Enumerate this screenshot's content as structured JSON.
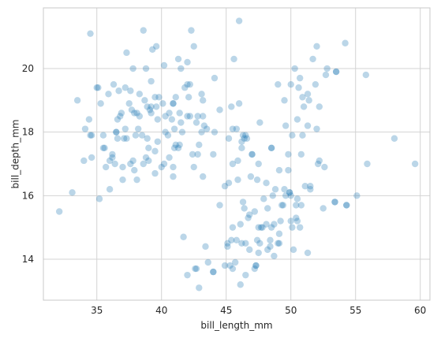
{
  "chart_data": {
    "type": "scatter",
    "title": "",
    "xlabel": "bill_length_mm",
    "ylabel": "bill_depth_mm",
    "xlim": [
      30.87,
      60.75
    ],
    "ylim": [
      12.71,
      21.91
    ],
    "xticks": [
      35,
      40,
      45,
      50,
      55,
      60
    ],
    "yticks": [
      14,
      16,
      18,
      20
    ],
    "grid": true,
    "marker_color": "#1f77b4",
    "marker_alpha": 0.3,
    "series": [
      {
        "points": [
          [
            34.5,
            21.1
          ],
          [
            35,
            19.4
          ],
          [
            35.3,
            18.9
          ],
          [
            35.5,
            17.5
          ],
          [
            35.9,
            19.2
          ],
          [
            36,
            17.1
          ],
          [
            36.2,
            17.2
          ],
          [
            36.3,
            19.5
          ],
          [
            36.5,
            18.0
          ],
          [
            36.6,
            18.4
          ],
          [
            36.7,
            19.3
          ],
          [
            36.9,
            18.6
          ],
          [
            37.0,
            16.9
          ],
          [
            37.2,
            18.1
          ],
          [
            37.3,
            17.8
          ],
          [
            37.5,
            18.9
          ],
          [
            37.6,
            19.3
          ],
          [
            37.7,
            18.7
          ],
          [
            37.8,
            17.1
          ],
          [
            37.9,
            18.6
          ],
          [
            38.1,
            18.6
          ],
          [
            38.2,
            18.1
          ],
          [
            38.3,
            19.2
          ],
          [
            38.5,
            17.9
          ],
          [
            38.6,
            21.2
          ],
          [
            38.7,
            19.0
          ],
          [
            38.8,
            17.2
          ],
          [
            39.0,
            17.5
          ],
          [
            39.1,
            18.7
          ],
          [
            39.2,
            19.6
          ],
          [
            39.3,
            20.6
          ],
          [
            39.5,
            17.4
          ],
          [
            39.6,
            18.8
          ],
          [
            39.7,
            18.4
          ],
          [
            39.8,
            19.1
          ],
          [
            40.1,
            18.9
          ],
          [
            40.2,
            17.0
          ],
          [
            40.3,
            18.0
          ],
          [
            40.5,
            17.9
          ],
          [
            40.6,
            18.6
          ],
          [
            40.8,
            18.4
          ],
          [
            40.9,
            16.6
          ],
          [
            41.1,
            17.6
          ],
          [
            41.3,
            20.3
          ],
          [
            41.4,
            18.6
          ],
          [
            41.5,
            18.3
          ],
          [
            41.6,
            18.0
          ],
          [
            41.8,
            19.4
          ],
          [
            42.0,
            20.2
          ],
          [
            42.1,
            19.1
          ],
          [
            42.2,
            18.5
          ],
          [
            42.3,
            21.2
          ],
          [
            42.5,
            20.7
          ],
          [
            42.7,
            18.3
          ],
          [
            42.8,
            18.5
          ],
          [
            42.9,
            17.6
          ],
          [
            43.1,
            19.2
          ],
          [
            43.2,
            18.5
          ],
          [
            44.1,
            19.7
          ],
          [
            45.2,
            16.4
          ],
          [
            45.5,
            13.7
          ],
          [
            45.8,
            14.6
          ],
          [
            46.1,
            13.2
          ],
          [
            46.2,
            14.5
          ],
          [
            46.5,
            13.5
          ],
          [
            46.8,
            15.4
          ],
          [
            47.0,
            17.3
          ],
          [
            47.2,
            13.7
          ],
          [
            47.4,
            14.6
          ],
          [
            47.6,
            14.5
          ],
          [
            47.8,
            15.0
          ],
          [
            48.1,
            15.1
          ],
          [
            48.4,
            14.4
          ],
          [
            48.7,
            14.1
          ],
          [
            49.0,
            14.5
          ],
          [
            49.1,
            14.8
          ],
          [
            49.5,
            16.2
          ],
          [
            49.8,
            16.8
          ],
          [
            50.0,
            15.2
          ],
          [
            50.2,
            14.3
          ],
          [
            50.5,
            15.9
          ],
          [
            50.7,
            15.0
          ],
          [
            51.1,
            16.3
          ],
          [
            51.5,
            16.3
          ],
          [
            52.2,
            17.1
          ],
          [
            53.4,
            15.8
          ],
          [
            54.3,
            15.7
          ],
          [
            55.1,
            16.0
          ],
          [
            55.9,
            17.0
          ],
          [
            59.6,
            17.0
          ],
          [
            32.1,
            15.5
          ],
          [
            33.1,
            16.1
          ],
          [
            33.5,
            19.0
          ],
          [
            34.0,
            17.1
          ],
          [
            34.1,
            18.1
          ],
          [
            34.4,
            18.4
          ],
          [
            34.6,
            17.2
          ],
          [
            35.1,
            19.4
          ],
          [
            35.2,
            15.9
          ],
          [
            35.7,
            16.9
          ],
          [
            36.0,
            16.2
          ],
          [
            36.4,
            17.0
          ],
          [
            36.8,
            18.5
          ],
          [
            37.0,
            16.5
          ],
          [
            37.3,
            20.5
          ],
          [
            37.6,
            17.0
          ],
          [
            37.9,
            16.8
          ],
          [
            38.1,
            16.5
          ],
          [
            38.6,
            17.0
          ],
          [
            38.9,
            17.8
          ],
          [
            39.2,
            18.8
          ],
          [
            39.7,
            17.7
          ],
          [
            40.0,
            16.9
          ],
          [
            40.6,
            17.2
          ],
          [
            40.9,
            16.9
          ],
          [
            41.0,
            17.5
          ],
          [
            41.4,
            17.6
          ],
          [
            42.0,
            18.5
          ],
          [
            42.4,
            17.3
          ],
          [
            42.7,
            13.7
          ],
          [
            43.3,
            18.2
          ],
          [
            43.5,
            18.1
          ],
          [
            44.0,
            13.6
          ],
          [
            44.5,
            15.7
          ],
          [
            44.9,
            13.8
          ],
          [
            45.1,
            14.5
          ],
          [
            45.3,
            13.8
          ],
          [
            45.4,
            14.6
          ],
          [
            45.5,
            15.0
          ],
          [
            45.6,
            20.3
          ],
          [
            45.7,
            13.9
          ],
          [
            45.9,
            17.1
          ],
          [
            46.0,
            21.5
          ],
          [
            46.3,
            15.8
          ],
          [
            46.4,
            17.8
          ],
          [
            46.6,
            17.8
          ],
          [
            46.7,
            15.3
          ],
          [
            46.9,
            16.6
          ],
          [
            47.3,
            13.8
          ],
          [
            47.5,
            15.0
          ],
          [
            47.7,
            15.0
          ],
          [
            48.2,
            14.3
          ],
          [
            48.5,
            17.5
          ],
          [
            48.6,
            16.0
          ],
          [
            48.8,
            16.2
          ],
          [
            49.2,
            15.2
          ],
          [
            49.3,
            15.7
          ],
          [
            49.6,
            16.0
          ],
          [
            49.9,
            16.1
          ],
          [
            50.1,
            15.0
          ],
          [
            50.3,
            20.0
          ],
          [
            50.4,
            15.3
          ],
          [
            50.6,
            19.4
          ],
          [
            50.8,
            17.3
          ],
          [
            50.9,
            19.1
          ],
          [
            51.0,
            18.8
          ],
          [
            51.3,
            19.2
          ],
          [
            51.4,
            19.0
          ],
          [
            51.7,
            20.3
          ],
          [
            51.9,
            19.5
          ],
          [
            52.0,
            20.7
          ],
          [
            52.5,
            15.6
          ],
          [
            52.7,
            19.8
          ],
          [
            52.8,
            20.0
          ],
          [
            53.5,
            19.9
          ],
          [
            54.2,
            20.8
          ],
          [
            55.8,
            19.8
          ],
          [
            58.0,
            17.8
          ],
          [
            36.2,
            17.3
          ],
          [
            37.1,
            17.8
          ],
          [
            38.8,
            20.0
          ],
          [
            39.6,
            20.7
          ],
          [
            40.9,
            18.9
          ],
          [
            41.1,
            19.1
          ],
          [
            42.5,
            16.9
          ],
          [
            43.2,
            16.6
          ],
          [
            44.1,
            18.0
          ],
          [
            45.2,
            17.8
          ],
          [
            45.8,
            18.1
          ],
          [
            46.2,
            17.5
          ],
          [
            46.5,
            17.9
          ],
          [
            47.0,
            17.3
          ],
          [
            47.5,
            14.2
          ],
          [
            48.1,
            16.4
          ],
          [
            48.7,
            15.1
          ],
          [
            49.0,
            19.5
          ],
          [
            49.5,
            19.0
          ],
          [
            50.0,
            19.5
          ],
          [
            50.5,
            18.4
          ],
          [
            50.7,
            19.7
          ],
          [
            51.3,
            18.2
          ],
          [
            52.0,
            18.1
          ],
          [
            52.2,
            18.8
          ],
          [
            53.5,
            19.9
          ],
          [
            46.0,
            18.9
          ],
          [
            45.5,
            17.0
          ],
          [
            44.9,
            16.3
          ],
          [
            47.4,
            16.5
          ],
          [
            49.6,
            18.2
          ],
          [
            49.8,
            17.3
          ],
          [
            36.5,
            18.0
          ],
          [
            39.5,
            16.7
          ],
          [
            40.3,
            18.5
          ],
          [
            42.0,
            19.5
          ],
          [
            43.2,
            19.0
          ],
          [
            45.4,
            18.8
          ],
          [
            46.1,
            15.1
          ],
          [
            47.3,
            13.8
          ],
          [
            48.4,
            14.6
          ],
          [
            49.4,
            15.7
          ],
          [
            50.4,
            15.7
          ],
          [
            51.3,
            14.2
          ],
          [
            50.8,
            15.7
          ],
          [
            49.1,
            14.5
          ],
          [
            48.5,
            15.0
          ],
          [
            47.2,
            15.5
          ],
          [
            46.5,
            14.5
          ],
          [
            45.1,
            14.4
          ],
          [
            44.0,
            13.6
          ],
          [
            43.6,
            13.9
          ],
          [
            43.4,
            14.4
          ],
          [
            42.9,
            13.1
          ],
          [
            42.6,
            13.7
          ],
          [
            42.0,
            13.5
          ],
          [
            41.7,
            14.7
          ],
          [
            46.8,
            14.3
          ],
          [
            46.4,
            15.6
          ],
          [
            48.2,
            15.6
          ],
          [
            49.9,
            16.1
          ],
          [
            50.5,
            15.2
          ],
          [
            38.0,
            17.9
          ],
          [
            37.8,
            20.0
          ],
          [
            38.9,
            18.8
          ],
          [
            39.0,
            17.1
          ],
          [
            40.2,
            20.1
          ],
          [
            41.5,
            20.0
          ],
          [
            43.1,
            18.0
          ],
          [
            44.5,
            18.7
          ],
          [
            47.6,
            18.3
          ],
          [
            48.5,
            17.5
          ],
          [
            50.1,
            17.9
          ],
          [
            50.9,
            17.9
          ],
          [
            52.1,
            17.0
          ],
          [
            53.4,
            15.8
          ],
          [
            54.3,
            15.7
          ],
          [
            47.9,
            15.9
          ],
          [
            49.1,
            16.8
          ],
          [
            46.2,
            17.7
          ],
          [
            45.9,
            16.5
          ],
          [
            45.5,
            18.1
          ],
          [
            44.0,
            17.3
          ],
          [
            42.8,
            17.3
          ],
          [
            41.3,
            17.5
          ],
          [
            40.9,
            18.9
          ],
          [
            39.5,
            19.1
          ],
          [
            38.3,
            18.5
          ],
          [
            37.2,
            19.4
          ],
          [
            36.6,
            17.8
          ],
          [
            35.6,
            17.5
          ],
          [
            34.6,
            17.9
          ],
          [
            34.5,
            17.9
          ],
          [
            35.5,
            17.9
          ],
          [
            39.2,
            18.6
          ],
          [
            41.0,
            18.1
          ],
          [
            42.2,
            19.5
          ],
          [
            46.3,
            17.9
          ],
          [
            47.5,
            17.0
          ],
          [
            50.0,
            16.0
          ],
          [
            51.5,
            16.2
          ],
          [
            52.6,
            16.9
          ]
        ]
      }
    ]
  }
}
